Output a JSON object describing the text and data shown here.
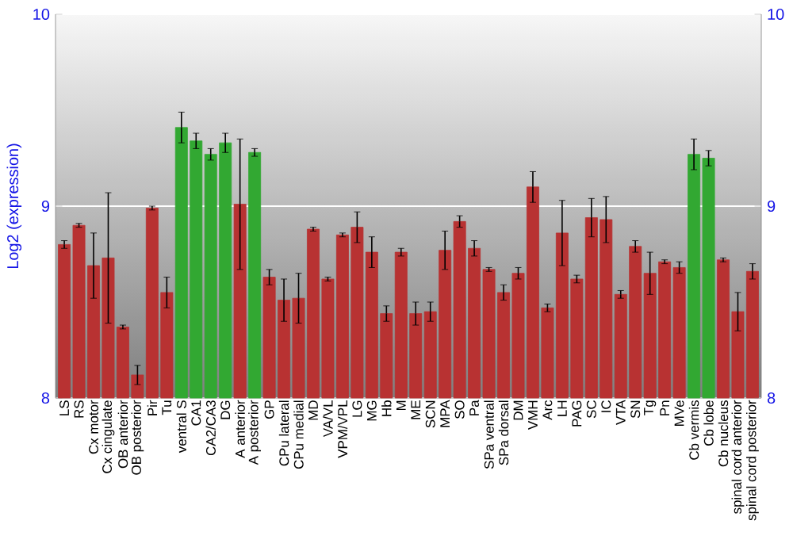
{
  "chart_data": {
    "type": "bar",
    "ylabel": "Log2 (expression)",
    "categories": [
      "LS",
      "RS",
      "Cx motor",
      "Cx cingulate",
      "OB anterior",
      "OB posterior",
      "Pir",
      "Tu",
      "ventral S",
      "CA1",
      "CA2/CA3",
      "DG",
      "A anterior",
      "A posterior",
      "GP",
      "CPu lateral",
      "CPu medial",
      "MD",
      "VA/VL",
      "VPM/VPL",
      "LG",
      "MG",
      "Hb",
      "M",
      "ME",
      "SCN",
      "MPA",
      "SO",
      "Pa",
      "SPa ventral",
      "SPa dorsal",
      "DM",
      "VMH",
      "Arc",
      "LH",
      "PAG",
      "SC",
      "IC",
      "VTA",
      "SN",
      "Tg",
      "Pn",
      "MVe",
      "Cb vermis",
      "Cb lobe",
      "Cb nucleus",
      "spinal cord anterior",
      "spinal cord posterior"
    ],
    "values": [
      8.8,
      8.9,
      8.69,
      8.73,
      8.37,
      8.12,
      8.99,
      8.55,
      9.41,
      9.34,
      9.27,
      9.33,
      9.01,
      9.28,
      8.63,
      8.51,
      8.52,
      8.88,
      8.62,
      8.85,
      8.89,
      8.76,
      8.44,
      8.76,
      8.44,
      8.45,
      8.77,
      8.92,
      8.78,
      8.67,
      8.55,
      8.65,
      9.1,
      8.47,
      8.86,
      8.62,
      8.94,
      8.93,
      8.54,
      8.79,
      8.65,
      8.71,
      8.68,
      9.27,
      9.25,
      8.72,
      8.45,
      8.66
    ],
    "errors": [
      0.02,
      0.01,
      0.17,
      0.34,
      0.01,
      0.05,
      0.01,
      0.08,
      0.08,
      0.04,
      0.03,
      0.05,
      0.34,
      0.02,
      0.04,
      0.11,
      0.13,
      0.01,
      0.01,
      0.01,
      0.08,
      0.08,
      0.04,
      0.02,
      0.06,
      0.05,
      0.1,
      0.03,
      0.04,
      0.01,
      0.04,
      0.03,
      0.08,
      0.02,
      0.17,
      0.02,
      0.1,
      0.12,
      0.02,
      0.03,
      0.11,
      0.01,
      0.03,
      0.08,
      0.04,
      0.01,
      0.1,
      0.04
    ],
    "colors": [
      "#b83232",
      "#b83232",
      "#b83232",
      "#b83232",
      "#b83232",
      "#b83232",
      "#b83232",
      "#b83232",
      "#32a832",
      "#32a832",
      "#32a832",
      "#32a832",
      "#b83232",
      "#32a832",
      "#b83232",
      "#b83232",
      "#b83232",
      "#b83232",
      "#b83232",
      "#b83232",
      "#b83232",
      "#b83232",
      "#b83232",
      "#b83232",
      "#b83232",
      "#b83232",
      "#b83232",
      "#b83232",
      "#b83232",
      "#b83232",
      "#b83232",
      "#b83232",
      "#b83232",
      "#b83232",
      "#b83232",
      "#b83232",
      "#b83232",
      "#b83232",
      "#b83232",
      "#b83232",
      "#b83232",
      "#b83232",
      "#b83232",
      "#32a832",
      "#32a832",
      "#b83232",
      "#b83232",
      "#b83232"
    ],
    "ylim": [
      8,
      10
    ],
    "yticks": [
      8,
      9,
      10
    ],
    "y2lim": [
      8,
      10
    ],
    "y2ticks": [
      8,
      9,
      10
    ],
    "grid": "y"
  }
}
